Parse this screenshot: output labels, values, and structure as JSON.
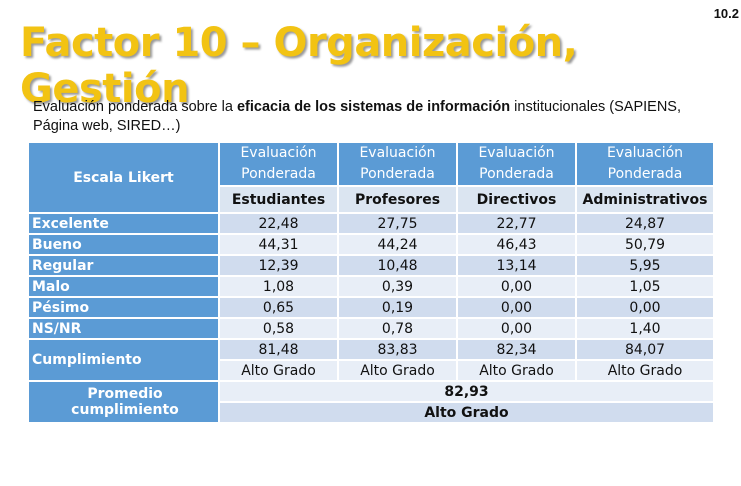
{
  "slide_number": "10.2",
  "title": "Factor 10 – Organización, Gestión",
  "description": {
    "before": "Evaluación ponderada sobre la ",
    "bold": "eficacia de los sistemas de información",
    "after": " institucionales (SAPIENS, Página web, SIRED…)"
  },
  "table": {
    "corner": "Escala Likert",
    "group_headers": [
      "Evaluación Ponderada",
      "Evaluación Ponderada",
      "Evaluación Ponderada",
      "Evaluación Ponderada"
    ],
    "columns": [
      "Estudiantes",
      "Profesores",
      "Directivos",
      "Administrativos"
    ],
    "rows": [
      {
        "label": "Excelente",
        "values": [
          "22,48",
          "27,75",
          "22,77",
          "24,87"
        ]
      },
      {
        "label": "Bueno",
        "values": [
          "44,31",
          "44,24",
          "46,43",
          "50,79"
        ]
      },
      {
        "label": "Regular",
        "values": [
          "12,39",
          "10,48",
          "13,14",
          "5,95"
        ]
      },
      {
        "label": "Malo",
        "values": [
          "1,08",
          "0,39",
          "0,00",
          "1,05"
        ]
      },
      {
        "label": "Pésimo",
        "values": [
          "0,65",
          "0,19",
          "0,00",
          "0,00"
        ]
      },
      {
        "label": "NS/NR",
        "values": [
          "0,58",
          "0,78",
          "0,00",
          "1,40"
        ]
      }
    ],
    "cumplimiento": {
      "label": "Cumplimiento",
      "values": [
        "81,48",
        "83,83",
        "82,34",
        "84,07"
      ],
      "grades": [
        "Alto Grado",
        "Alto Grado",
        "Alto Grado",
        "Alto Grado"
      ]
    },
    "promedio": {
      "label": "Promedio cumplimiento",
      "value": "82,93",
      "grade": "Alto Grado"
    }
  }
}
